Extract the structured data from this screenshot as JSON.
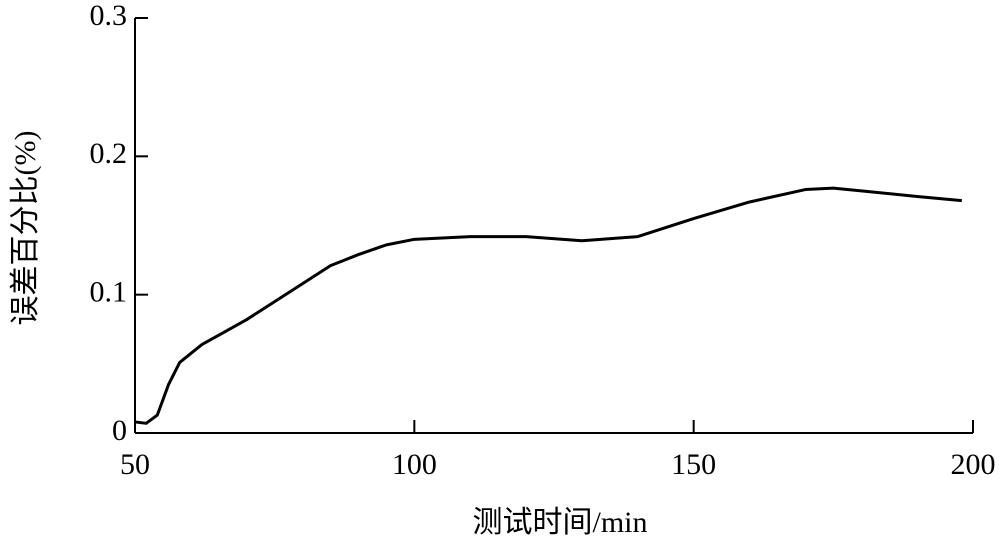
{
  "chart_data": {
    "type": "line",
    "x_label": "测试时间/min",
    "y_label": "误差百分比(%)",
    "x": [
      50,
      52,
      54,
      56,
      58,
      62,
      66,
      70,
      75,
      80,
      85,
      90,
      95,
      100,
      110,
      120,
      130,
      140,
      150,
      160,
      170,
      175,
      180,
      190,
      198
    ],
    "series": [
      {
        "color": "#000000",
        "values": [
          0.008,
          0.007,
          0.013,
          0.035,
          0.051,
          0.064,
          0.073,
          0.082,
          0.095,
          0.108,
          0.121,
          0.129,
          0.136,
          0.14,
          0.142,
          0.142,
          0.139,
          0.142,
          0.155,
          0.167,
          0.176,
          0.177,
          0.175,
          0.171,
          0.168
        ]
      }
    ],
    "xlim": [
      50,
      200
    ],
    "xticks": [
      50,
      100,
      150,
      200
    ],
    "ylim": [
      0,
      0.3
    ],
    "yticks": [
      0,
      0.1,
      0.2,
      0.3
    ],
    "grid": false
  }
}
